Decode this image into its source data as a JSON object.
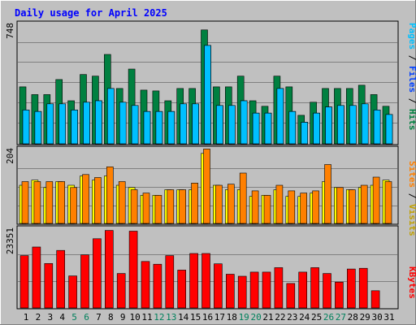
{
  "title": "Daily usage for April 2025",
  "colors": {
    "background": "#c0c0c0",
    "plot_bg": "#c0c0c0",
    "grid": "#808080",
    "title": "#0000ff",
    "hits": "#008040",
    "files": "#00e0ff",
    "pages": "#00c0ff",
    "visits": "#ffff00",
    "sites": "#ff8000",
    "kbytes": "#ff0000",
    "weekday_label": "#000000",
    "weekend_label": "#00805c"
  },
  "chart_data": [
    {
      "type": "bar",
      "title": "Daily usage for April 2025",
      "ymax_label": "748",
      "ylim": [
        0,
        748
      ],
      "legend": [
        "Pages",
        "Files",
        "Hits"
      ],
      "legend_separator": " / ",
      "x": [
        "1",
        "2",
        "3",
        "4",
        "5",
        "6",
        "7",
        "8",
        "9",
        "10",
        "11",
        "12",
        "13",
        "14",
        "15",
        "16",
        "17",
        "18",
        "19",
        "20",
        "21",
        "22",
        "23",
        "24",
        "25",
        "26",
        "27",
        "28",
        "29",
        "30",
        "31"
      ],
      "weekend": [
        "5",
        "6",
        "12",
        "13",
        "19",
        "20",
        "26",
        "27"
      ],
      "series": [
        {
          "name": "Hits",
          "color": "#008040",
          "values": [
            352,
            304,
            304,
            397,
            266,
            428,
            418,
            552,
            342,
            462,
            332,
            327,
            266,
            342,
            342,
            704,
            352,
            352,
            418,
            266,
            232,
            418,
            352,
            176,
            257,
            342,
            342,
            342,
            362,
            304,
            232
          ]
        },
        {
          "name": "Files",
          "color": "#00e0ff",
          "values": [
            209,
            200,
            247,
            247,
            209,
            257,
            266,
            342,
            257,
            237,
            200,
            200,
            200,
            247,
            247,
            608,
            237,
            237,
            266,
            190,
            190,
            342,
            200,
            133,
            190,
            228,
            237,
            237,
            247,
            209,
            181
          ]
        },
        {
          "name": "Pages",
          "color": "#00c0ff",
          "values": [
            209,
            200,
            247,
            247,
            209,
            257,
            266,
            342,
            257,
            237,
            200,
            200,
            200,
            247,
            247,
            608,
            237,
            237,
            266,
            190,
            190,
            342,
            200,
            133,
            190,
            228,
            237,
            237,
            247,
            209,
            181
          ]
        }
      ]
    },
    {
      "type": "bar",
      "ymax_label": "204",
      "ylim": [
        0,
        204
      ],
      "legend": [
        "Sites",
        "Visits"
      ],
      "legend_separator": " / ",
      "series": [
        {
          "name": "Visits",
          "color": "#ffff00",
          "values": [
            103,
            117,
            97,
            113,
            103,
            128,
            117,
            128,
            103,
            97,
            76,
            76,
            91,
            91,
            91,
            189,
            103,
            91,
            91,
            73,
            76,
            91,
            73,
            73,
            82,
            113,
            97,
            91,
            97,
            103,
            117
          ]
        },
        {
          "name": "Sites",
          "color": "#ff8000",
          "values": [
            113,
            113,
            113,
            113,
            97,
            132,
            124,
            153,
            113,
            91,
            82,
            76,
            91,
            91,
            109,
            201,
            103,
            106,
            136,
            88,
            76,
            103,
            88,
            82,
            88,
            159,
            97,
            91,
            103,
            125,
            113
          ]
        }
      ]
    },
    {
      "type": "bar",
      "ymax_label": "23351",
      "ylim": [
        0,
        23351
      ],
      "legend": [
        "KBytes"
      ],
      "series": [
        {
          "name": "KBytes",
          "color": "#ff0000",
          "values": [
            15200,
            17700,
            12900,
            16700,
            9300,
            15400,
            20100,
            22500,
            10000,
            22300,
            13500,
            12700,
            15200,
            11000,
            15800,
            15800,
            12800,
            9800,
            9200,
            10400,
            10400,
            11700,
            7100,
            10400,
            11700,
            10000,
            7500,
            11300,
            11500,
            5000,
            0
          ]
        }
      ]
    }
  ]
}
